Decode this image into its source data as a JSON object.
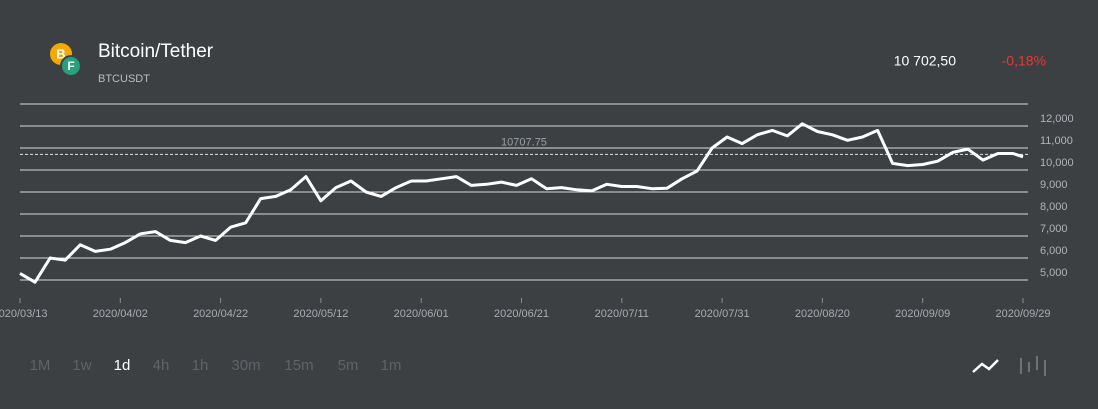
{
  "header": {
    "title": "Bitcoin/Tether",
    "symbol": "BTCUSDT",
    "price": "10 702,50",
    "change": "-0,18%"
  },
  "chart_data": {
    "type": "line",
    "x": [
      "2020/03/13",
      "2020/03/16",
      "2020/03/19",
      "2020/03/22",
      "2020/03/25",
      "2020/03/28",
      "2020/03/31",
      "2020/04/03",
      "2020/04/06",
      "2020/04/09",
      "2020/04/12",
      "2020/04/15",
      "2020/04/18",
      "2020/04/21",
      "2020/04/24",
      "2020/04/27",
      "2020/04/30",
      "2020/05/03",
      "2020/05/06",
      "2020/05/09",
      "2020/05/12",
      "2020/05/15",
      "2020/05/18",
      "2020/05/21",
      "2020/05/24",
      "2020/05/27",
      "2020/05/30",
      "2020/06/02",
      "2020/06/05",
      "2020/06/08",
      "2020/06/11",
      "2020/06/14",
      "2020/06/17",
      "2020/06/20",
      "2020/06/23",
      "2020/06/26",
      "2020/06/29",
      "2020/07/02",
      "2020/07/05",
      "2020/07/08",
      "2020/07/11",
      "2020/07/14",
      "2020/07/17",
      "2020/07/20",
      "2020/07/23",
      "2020/07/26",
      "2020/07/29",
      "2020/08/01",
      "2020/08/04",
      "2020/08/07",
      "2020/08/10",
      "2020/08/13",
      "2020/08/16",
      "2020/08/19",
      "2020/08/22",
      "2020/08/25",
      "2020/08/28",
      "2020/08/31",
      "2020/09/03",
      "2020/09/06",
      "2020/09/09",
      "2020/09/12",
      "2020/09/15",
      "2020/09/18",
      "2020/09/21",
      "2020/09/24",
      "2020/09/27",
      "2020/09/29"
    ],
    "series": [
      {
        "name": "BTCUSDT",
        "color": "#ffffff",
        "values": [
          5300,
          4900,
          6000,
          5900,
          6600,
          6300,
          6400,
          6700,
          7100,
          7200,
          6800,
          6700,
          7000,
          6800,
          7400,
          7600,
          8700,
          8800,
          9100,
          9700,
          8600,
          9200,
          9500,
          9000,
          8800,
          9200,
          9500,
          9500,
          9600,
          9700,
          9300,
          9350,
          9450,
          9300,
          9600,
          9150,
          9200,
          9100,
          9050,
          9350,
          9250,
          9250,
          9150,
          9170,
          9600,
          9950,
          11000,
          11500,
          11200,
          11600,
          11800,
          11550,
          12100,
          11750,
          11600,
          11350,
          11500,
          11800,
          10300,
          10200,
          10250,
          10400,
          10800,
          10950,
          10450,
          10750,
          10750,
          10600
        ]
      }
    ],
    "xticks": [
      "2020/03/13",
      "2020/04/02",
      "2020/04/22",
      "2020/05/12",
      "2020/06/01",
      "2020/06/21",
      "2020/07/11",
      "2020/07/31",
      "2020/08/20",
      "2020/09/09",
      "2020/09/29"
    ],
    "xlim": [
      "2020/03/13",
      "2020/09/29"
    ],
    "ylim": [
      4300,
      13000
    ],
    "yticks": [
      {
        "value": 5000,
        "label": "5,000"
      },
      {
        "value": 6000,
        "label": "6,000"
      },
      {
        "value": 7000,
        "label": "7,000"
      },
      {
        "value": 8000,
        "label": "8,000"
      },
      {
        "value": 9000,
        "label": "9,000"
      },
      {
        "value": 10000,
        "label": "10,000"
      },
      {
        "value": 11000,
        "label": "11,000"
      },
      {
        "value": 12000,
        "label": "12,000"
      }
    ],
    "reference_line": 10707.75,
    "grid": true
  },
  "timeframes": {
    "options": [
      "1M",
      "1w",
      "1d",
      "4h",
      "1h",
      "30m",
      "15m",
      "5m",
      "1m"
    ],
    "active": "1d"
  }
}
